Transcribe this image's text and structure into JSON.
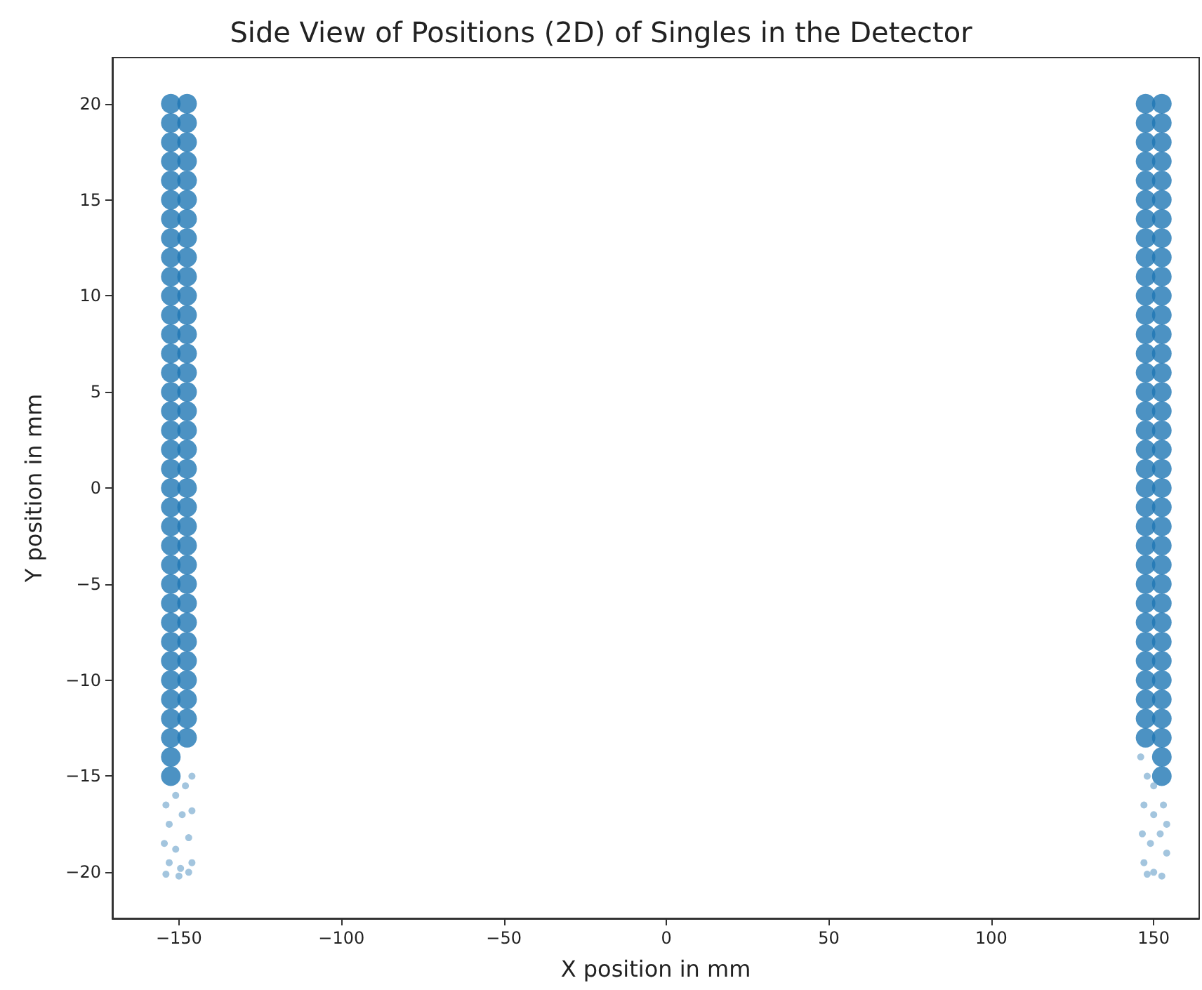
{
  "chart_data": {
    "type": "scatter",
    "title": "Side View of Positions (2D) of Singles in the Detector",
    "xlabel": "X position in mm",
    "ylabel": "Y position in mm",
    "xlim": [
      -170.5,
      164
    ],
    "ylim": [
      -22.4,
      22.4
    ],
    "xticks": [
      {
        "value": -150,
        "label": "−150"
      },
      {
        "value": -100,
        "label": "−100"
      },
      {
        "value": -50,
        "label": "−50"
      },
      0,
      50,
      100,
      150
    ],
    "yticks": [
      {
        "value": -20,
        "label": "−20"
      },
      {
        "value": -15,
        "label": "−15"
      },
      {
        "value": -10,
        "label": "−10"
      },
      {
        "value": -5,
        "label": "−5"
      },
      0,
      5,
      10,
      15,
      20
    ],
    "grid": false,
    "marker": "circle",
    "series": [
      {
        "color": "#1f77b4",
        "x": [
          -152.5,
          -152.5,
          -152.5,
          -152.5,
          -152.5,
          -152.5,
          -152.5,
          -152.5,
          -152.5,
          -152.5,
          -152.5,
          -152.5,
          -152.5,
          -152.5,
          -152.5,
          -152.5,
          -152.5,
          -152.5,
          -152.5,
          -152.5,
          -152.5,
          -152.5,
          -152.5,
          -152.5,
          -152.5,
          -152.5,
          -152.5,
          -152.5,
          -152.5,
          -152.5,
          -152.5,
          -152.5,
          -152.5,
          -152.5,
          -152.5,
          -152.5,
          -147.5,
          -147.5,
          -147.5,
          -147.5,
          -147.5,
          -147.5,
          -147.5,
          -147.5,
          -147.5,
          -147.5,
          -147.5,
          -147.5,
          -147.5,
          -147.5,
          -147.5,
          -147.5,
          -147.5,
          -147.5,
          -147.5,
          -147.5,
          -147.5,
          -147.5,
          -147.5,
          -147.5,
          -147.5,
          -147.5,
          -147.5,
          -147.5,
          -147.5,
          -147.5,
          -147.5,
          -147.5,
          -147.5,
          -147.5
        ],
        "values": [
          20,
          19,
          18,
          17,
          16,
          15,
          14,
          13,
          12,
          11,
          10,
          9,
          8,
          7,
          6,
          5,
          4,
          3,
          2,
          1,
          0,
          -1,
          -2,
          -3,
          -4,
          -5,
          -6,
          -7,
          -8,
          -9,
          -10,
          -11,
          -12,
          -13,
          -14,
          -15,
          20,
          19,
          18,
          17,
          16,
          15,
          14,
          13,
          12,
          11,
          10,
          9,
          8,
          7,
          6,
          5,
          4,
          3,
          2,
          1,
          0,
          -1,
          -2,
          -3,
          -4,
          -5,
          -6,
          -7,
          -8,
          -9,
          -10,
          -11,
          -12,
          -13
        ]
      },
      {
        "color": "#8cb6d6",
        "x": [
          -154,
          -151,
          -148,
          -146,
          -153,
          -149,
          -146,
          -154.5,
          -151,
          -147,
          -153,
          -149.5,
          -146,
          -154,
          -150,
          -147
        ],
        "values": [
          -16.5,
          -16,
          -15.5,
          -15,
          -17.5,
          -17,
          -16.8,
          -18.5,
          -18.8,
          -18.2,
          -19.5,
          -19.8,
          -19.5,
          -20.1,
          -20.2,
          -20
        ]
      },
      {
        "color": "#1f77b4",
        "x": [
          147.5,
          147.5,
          147.5,
          147.5,
          147.5,
          147.5,
          147.5,
          147.5,
          147.5,
          147.5,
          147.5,
          147.5,
          147.5,
          147.5,
          147.5,
          147.5,
          147.5,
          147.5,
          147.5,
          147.5,
          147.5,
          147.5,
          147.5,
          147.5,
          147.5,
          147.5,
          147.5,
          147.5,
          147.5,
          147.5,
          147.5,
          147.5,
          147.5,
          147.5,
          152.5,
          152.5,
          152.5,
          152.5,
          152.5,
          152.5,
          152.5,
          152.5,
          152.5,
          152.5,
          152.5,
          152.5,
          152.5,
          152.5,
          152.5,
          152.5,
          152.5,
          152.5,
          152.5,
          152.5,
          152.5,
          152.5,
          152.5,
          152.5,
          152.5,
          152.5,
          152.5,
          152.5,
          152.5,
          152.5,
          152.5,
          152.5,
          152.5,
          152.5,
          152.5,
          152.5
        ],
        "values": [
          20,
          19,
          18,
          17,
          16,
          15,
          14,
          13,
          12,
          11,
          10,
          9,
          8,
          7,
          6,
          5,
          4,
          3,
          2,
          1,
          0,
          -1,
          -2,
          -3,
          -4,
          -5,
          -6,
          -7,
          -8,
          -9,
          -10,
          -11,
          -12,
          -13,
          20,
          19,
          18,
          17,
          16,
          15,
          14,
          13,
          12,
          11,
          10,
          9,
          8,
          7,
          6,
          5,
          4,
          3,
          2,
          1,
          0,
          -1,
          -2,
          -3,
          -4,
          -5,
          -6,
          -7,
          -8,
          -9,
          -10,
          -11,
          -12,
          -13,
          -14,
          -15
        ]
      },
      {
        "color": "#8cb6d6",
        "x": [
          146,
          148,
          150,
          147,
          150,
          153,
          146.5,
          149,
          152,
          154,
          147,
          150,
          152.5,
          148,
          154
        ],
        "values": [
          -14,
          -15,
          -15.5,
          -16.5,
          -17,
          -16.5,
          -18,
          -18.5,
          -18,
          -19,
          -19.5,
          -20,
          -20.2,
          -20.1,
          -17.5
        ]
      }
    ]
  }
}
